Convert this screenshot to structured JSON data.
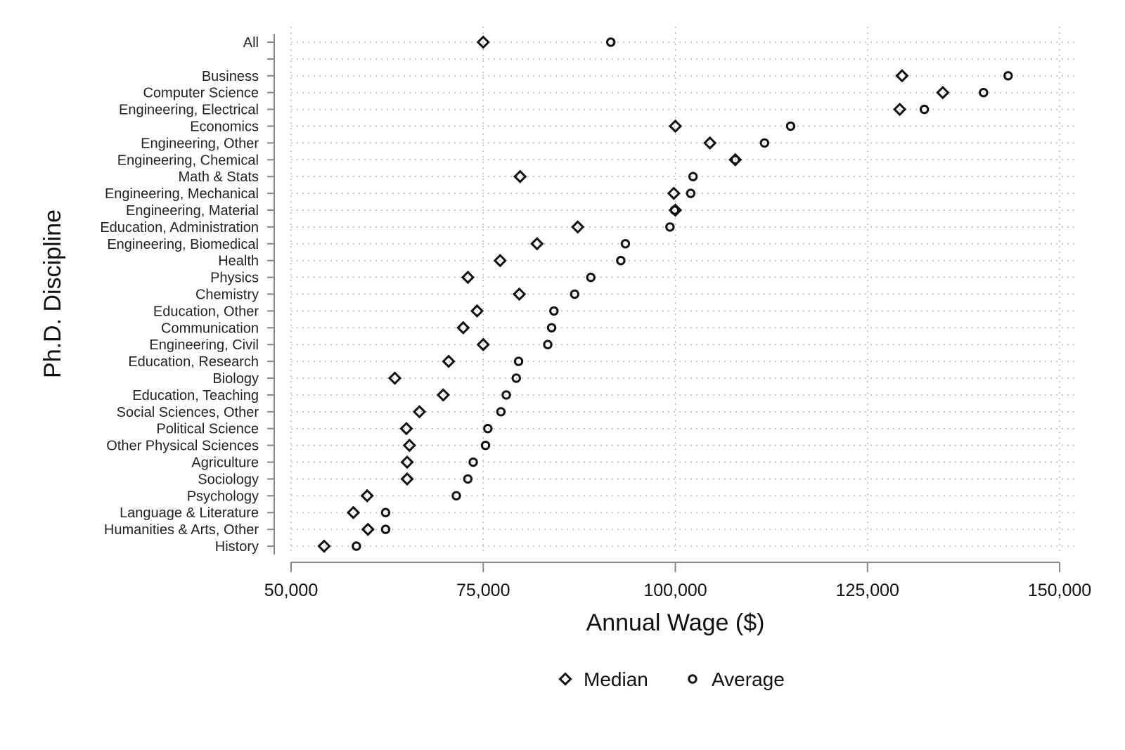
{
  "chart_data": {
    "type": "scatter",
    "title": "",
    "xlabel": "Annual Wage ($)",
    "ylabel": "Ph.D. Discipline",
    "xlim": [
      50000,
      150000
    ],
    "xticks": [
      50000,
      75000,
      100000,
      125000,
      150000
    ],
    "xtick_labels": [
      "50,000",
      "75,000",
      "100,000",
      "125,000",
      "150,000"
    ],
    "grid": true,
    "legend_position": "bottom",
    "categories": [
      "All",
      "",
      "Business",
      "Computer Science",
      "Engineering, Electrical",
      "Economics",
      "Engineering, Other",
      "Engineering, Chemical",
      "Math & Stats",
      "Engineering, Mechanical",
      "Engineering, Material",
      "Education, Administration",
      "Engineering, Biomedical",
      "Health",
      "Physics",
      "Chemistry",
      "Education, Other",
      "Communication",
      "Engineering, Civil",
      "Education, Research",
      "Biology",
      "Education, Teaching",
      "Social Sciences, Other",
      "Political Science",
      "Other Physical Sciences",
      "Agriculture",
      "Sociology",
      "Psychology",
      "Language & Literature",
      "Humanities & Arts, Other",
      "History"
    ],
    "series": [
      {
        "name": "Median",
        "marker": "diamond",
        "values": [
          75000,
          null,
          129500,
          134800,
          129200,
          100000,
          104500,
          107800,
          79800,
          99800,
          100000,
          87300,
          82000,
          77200,
          73000,
          79700,
          74200,
          72400,
          75000,
          70500,
          63500,
          69800,
          66700,
          65000,
          65400,
          65100,
          65100,
          59900,
          58100,
          60000,
          54300
        ]
      },
      {
        "name": "Average",
        "marker": "circle",
        "values": [
          91600,
          null,
          143300,
          140100,
          132400,
          115000,
          111600,
          107800,
          102300,
          102000,
          99900,
          99300,
          93500,
          92900,
          89000,
          86900,
          84200,
          83900,
          83400,
          79600,
          79300,
          78000,
          77300,
          75600,
          75300,
          73700,
          73000,
          71500,
          62300,
          62300,
          58500
        ]
      }
    ]
  }
}
